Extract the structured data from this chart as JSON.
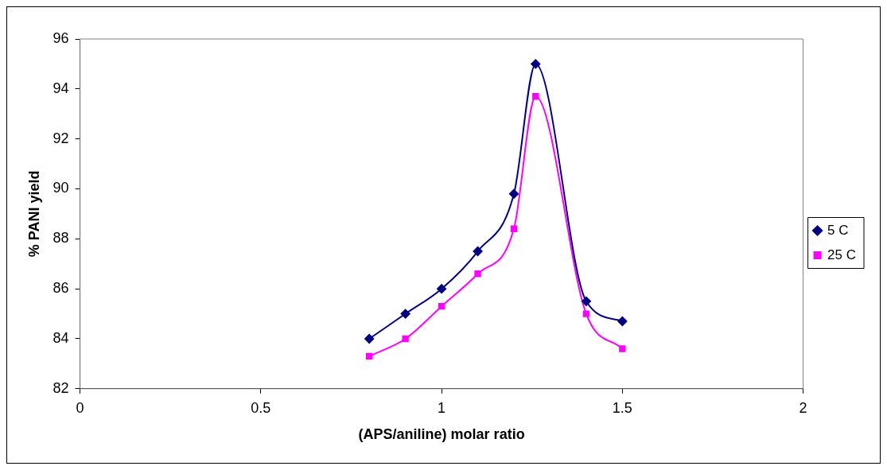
{
  "chart_data": {
    "type": "line",
    "xlabel": "(APS/aniline) molar ratio",
    "ylabel": "% PANI yield",
    "xlim": [
      0,
      2
    ],
    "xticks": [
      0,
      0.5,
      1,
      1.5,
      2
    ],
    "ylim": [
      82,
      96
    ],
    "yticks": [
      82,
      84,
      86,
      88,
      90,
      92,
      94,
      96
    ],
    "grid": false,
    "legend": "right",
    "line_style": "solid",
    "series": [
      {
        "name": "5 C",
        "color": "#000080",
        "marker": "diamond",
        "x": [
          0.8,
          0.9,
          1.0,
          1.1,
          1.2,
          1.26,
          1.4,
          1.5
        ],
        "values": [
          84.0,
          85.0,
          86.0,
          87.5,
          89.8,
          95.0,
          85.5,
          84.7
        ]
      },
      {
        "name": "25 C",
        "color": "#ff00ff",
        "marker": "square",
        "x": [
          0.8,
          0.9,
          1.0,
          1.1,
          1.2,
          1.26,
          1.4,
          1.5
        ],
        "values": [
          83.3,
          84.0,
          85.3,
          86.6,
          88.4,
          93.7,
          85.0,
          83.6
        ]
      }
    ]
  }
}
